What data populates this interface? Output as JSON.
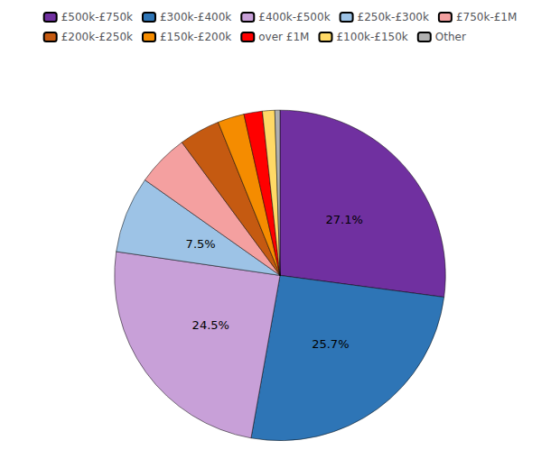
{
  "chart_data": {
    "type": "pie",
    "categories": [
      "£500k-£750k",
      "£300k-£400k",
      "£400k-£500k",
      "£250k-£300k",
      "£750k-£1M",
      "£200k-£250k",
      "£150k-£200k",
      "over £1M",
      "£100k-£150k",
      "Other"
    ],
    "values": [
      27.1,
      25.7,
      24.5,
      7.5,
      5.1,
      4.0,
      2.6,
      1.8,
      1.2,
      0.5
    ],
    "value_labels": [
      "27.1%",
      "25.7%",
      "24.5%",
      "7.5%",
      null,
      null,
      null,
      null,
      null,
      null
    ],
    "colors": [
      "#7030a0",
      "#2e75b6",
      "#c8a0d8",
      "#9dc3e6",
      "#f4a0a0",
      "#c55a11",
      "#f58c00",
      "#ff0000",
      "#ffd966",
      "#b0b0b0"
    ],
    "data_labels": true,
    "legend": "top"
  }
}
